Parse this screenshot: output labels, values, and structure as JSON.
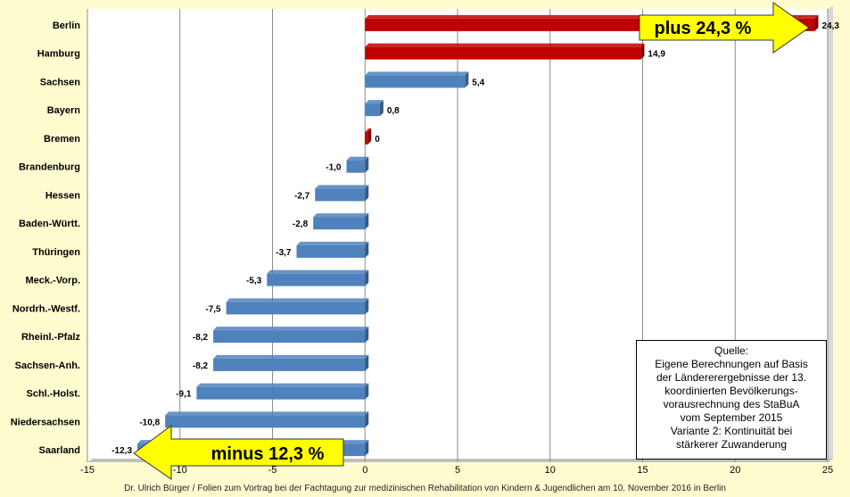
{
  "chart_data": {
    "type": "bar",
    "orientation": "horizontal",
    "categories": [
      "Berlin",
      "Hamburg",
      "Sachsen",
      "Bayern",
      "Bremen",
      "Brandenburg",
      "Hessen",
      "Baden-Württ.",
      "Thüringen",
      "Meck.-Vorp.",
      "Nordrh.-Westf.",
      "Rheinl.-Pfalz",
      "Sachsen-Anh.",
      "Schl.-Holst.",
      "Niedersachsen",
      "Saarland"
    ],
    "values": [
      24.3,
      14.9,
      5.4,
      0.8,
      0,
      -1.0,
      -2.7,
      -2.8,
      -3.7,
      -5.3,
      -7.5,
      -8.2,
      -8.2,
      -9.1,
      -10.8,
      -12.3
    ],
    "value_labels": [
      "24,3",
      "14,9",
      "5,4",
      "0,8",
      "0",
      "-1,0",
      "-2,7",
      "-2,8",
      "-3,7",
      "-5,3",
      "-7,5",
      "-8,2",
      "-8,2",
      "-9,1",
      "-10,8",
      "-12,3"
    ],
    "bar_colors": [
      "#c00000",
      "#c00000",
      "#4f81bd",
      "#4f81bd",
      "#c00000",
      "#4f81bd",
      "#4f81bd",
      "#4f81bd",
      "#4f81bd",
      "#4f81bd",
      "#4f81bd",
      "#4f81bd",
      "#4f81bd",
      "#4f81bd",
      "#4f81bd",
      "#4f81bd"
    ],
    "xlim": [
      -15,
      25
    ],
    "xticks": [
      -15,
      -10,
      -5,
      0,
      5,
      10,
      15,
      20,
      25
    ],
    "grid": "vertical",
    "annotations": [
      {
        "text": "plus 24,3 %",
        "style": "yellow arrow pointing right",
        "near": "Berlin"
      },
      {
        "text": "minus 12,3 %",
        "style": "yellow arrow pointing left",
        "near": "Saarland"
      }
    ]
  },
  "source_box": {
    "lines": [
      "Quelle:",
      "Eigene Berechnungen auf Basis",
      "der Ländererergebnisse der 13.",
      "koordinierten Bevölkerungs-",
      "vorausrechnung des StaBuA",
      "vom September 2015",
      "Variante 2: Kontinuität bei",
      "stärkerer Zuwanderung"
    ]
  },
  "footer": "Dr. Ulrich Bürger / Folien zum Vortrag bei der  Fachtagung zur medizinischen Rehabilitation von Kindern & Jugendlichen am 10. November 2016 in Berlin",
  "colors": {
    "background": "#fffdd0",
    "positive": "#c00000",
    "negative": "#4f81bd",
    "callout": "#ffff00"
  }
}
